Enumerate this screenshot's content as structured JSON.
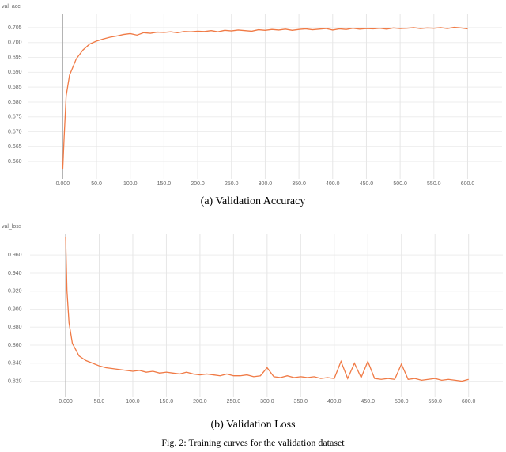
{
  "chart_data": [
    {
      "type": "line",
      "ylabel": "val_acc",
      "caption": "(a)  Validation Accuracy",
      "color": "#f07a45",
      "grid": true,
      "x": [
        0,
        2,
        5,
        10,
        20,
        30,
        40,
        50,
        60,
        70,
        80,
        90,
        100,
        110,
        120,
        130,
        140,
        150,
        160,
        170,
        180,
        190,
        200,
        210,
        220,
        230,
        240,
        250,
        260,
        270,
        280,
        290,
        300,
        310,
        320,
        330,
        340,
        350,
        360,
        370,
        380,
        390,
        400,
        410,
        420,
        430,
        440,
        450,
        460,
        470,
        480,
        490,
        500,
        510,
        520,
        530,
        540,
        550,
        560,
        570,
        580,
        590,
        600
      ],
      "values": [
        0.6575,
        0.668,
        0.682,
        0.689,
        0.6945,
        0.6975,
        0.6995,
        0.7005,
        0.7012,
        0.7018,
        0.7022,
        0.7027,
        0.703,
        0.7025,
        0.7033,
        0.7031,
        0.7035,
        0.7034,
        0.7036,
        0.7033,
        0.7037,
        0.7036,
        0.7038,
        0.7037,
        0.704,
        0.7036,
        0.7041,
        0.7039,
        0.7042,
        0.704,
        0.7038,
        0.7043,
        0.7041,
        0.7044,
        0.7042,
        0.7045,
        0.7041,
        0.7044,
        0.7046,
        0.7043,
        0.7045,
        0.7047,
        0.7042,
        0.7046,
        0.7044,
        0.7048,
        0.7045,
        0.7047,
        0.7046,
        0.7048,
        0.7045,
        0.7049,
        0.7047,
        0.7048,
        0.705,
        0.7047,
        0.7049,
        0.7048,
        0.705,
        0.7047,
        0.7051,
        0.7049,
        0.7046
      ],
      "xlim": [
        -52,
        651
      ],
      "ylim": [
        0.6518,
        0.7095
      ],
      "xticks": [
        {
          "value": 0,
          "label": "0.000"
        },
        {
          "value": 50,
          "label": "50.0"
        },
        {
          "value": 100,
          "label": "100.0"
        },
        {
          "value": 150,
          "label": "150.0"
        },
        {
          "value": 200,
          "label": "200.0"
        },
        {
          "value": 250,
          "label": "250.0"
        },
        {
          "value": 300,
          "label": "300.0"
        },
        {
          "value": 350,
          "label": "350.0"
        },
        {
          "value": 400,
          "label": "400.0"
        },
        {
          "value": 450,
          "label": "450.0"
        },
        {
          "value": 500,
          "label": "500.0"
        },
        {
          "value": 550,
          "label": "550.0"
        },
        {
          "value": 600,
          "label": "600.0"
        }
      ],
      "yticks": [
        0.705,
        {
          "value": 0.7,
          "label": "0.700"
        },
        0.695,
        {
          "value": 0.69,
          "label": "0.690"
        },
        0.685,
        {
          "value": 0.68,
          "label": "0.680"
        },
        0.675,
        {
          "value": 0.67,
          "label": "0.670"
        },
        0.665,
        {
          "value": 0.66,
          "label": "0.660"
        }
      ]
    },
    {
      "type": "line",
      "ylabel": "val_loss",
      "caption": "(b)  Validation Loss",
      "color": "#f07a45",
      "grid": true,
      "x": [
        0,
        2,
        5,
        10,
        20,
        30,
        40,
        50,
        60,
        70,
        80,
        90,
        100,
        110,
        120,
        130,
        140,
        150,
        160,
        170,
        180,
        190,
        200,
        210,
        220,
        230,
        240,
        250,
        260,
        270,
        280,
        290,
        300,
        310,
        320,
        330,
        340,
        350,
        360,
        370,
        380,
        390,
        400,
        410,
        420,
        430,
        440,
        450,
        460,
        470,
        480,
        490,
        500,
        510,
        520,
        530,
        540,
        550,
        560,
        570,
        580,
        590,
        600
      ],
      "values": [
        0.98,
        0.92,
        0.885,
        0.862,
        0.848,
        0.843,
        0.84,
        0.837,
        0.835,
        0.834,
        0.833,
        0.832,
        0.831,
        0.832,
        0.83,
        0.831,
        0.829,
        0.83,
        0.829,
        0.828,
        0.83,
        0.828,
        0.827,
        0.828,
        0.827,
        0.826,
        0.828,
        0.826,
        0.826,
        0.827,
        0.825,
        0.826,
        0.835,
        0.825,
        0.824,
        0.826,
        0.824,
        0.825,
        0.824,
        0.825,
        0.823,
        0.824,
        0.823,
        0.842,
        0.823,
        0.84,
        0.824,
        0.842,
        0.823,
        0.822,
        0.823,
        0.822,
        0.839,
        0.822,
        0.823,
        0.821,
        0.822,
        0.823,
        0.821,
        0.822,
        0.821,
        0.82,
        0.822
      ],
      "xlim": [
        -53,
        651
      ],
      "ylim": [
        0.795,
        0.983
      ],
      "xticks": [
        {
          "value": 0,
          "label": "0.000"
        },
        {
          "value": 50,
          "label": "50.0"
        },
        {
          "value": 100,
          "label": "100.0"
        },
        {
          "value": 150,
          "label": "150.0"
        },
        {
          "value": 200,
          "label": "200.0"
        },
        {
          "value": 250,
          "label": "250.0"
        },
        {
          "value": 300,
          "label": "300.0"
        },
        {
          "value": 350,
          "label": "350.0"
        },
        {
          "value": 400,
          "label": "400.0"
        },
        {
          "value": 450,
          "label": "450.0"
        },
        {
          "value": 500,
          "label": "500.0"
        },
        {
          "value": 550,
          "label": "550.0"
        },
        {
          "value": 600,
          "label": "600.0"
        }
      ],
      "yticks": [
        {
          "value": 0.96,
          "label": "0.960"
        },
        {
          "value": 0.94,
          "label": "0.940"
        },
        {
          "value": 0.92,
          "label": "0.920"
        },
        {
          "value": 0.9,
          "label": "0.900"
        },
        {
          "value": 0.88,
          "label": "0.880"
        },
        {
          "value": 0.86,
          "label": "0.860"
        },
        {
          "value": 0.84,
          "label": "0.840"
        },
        {
          "value": 0.82,
          "label": "0.820"
        }
      ]
    }
  ],
  "caption": "Fig. 2:  Training curves for the validation dataset"
}
